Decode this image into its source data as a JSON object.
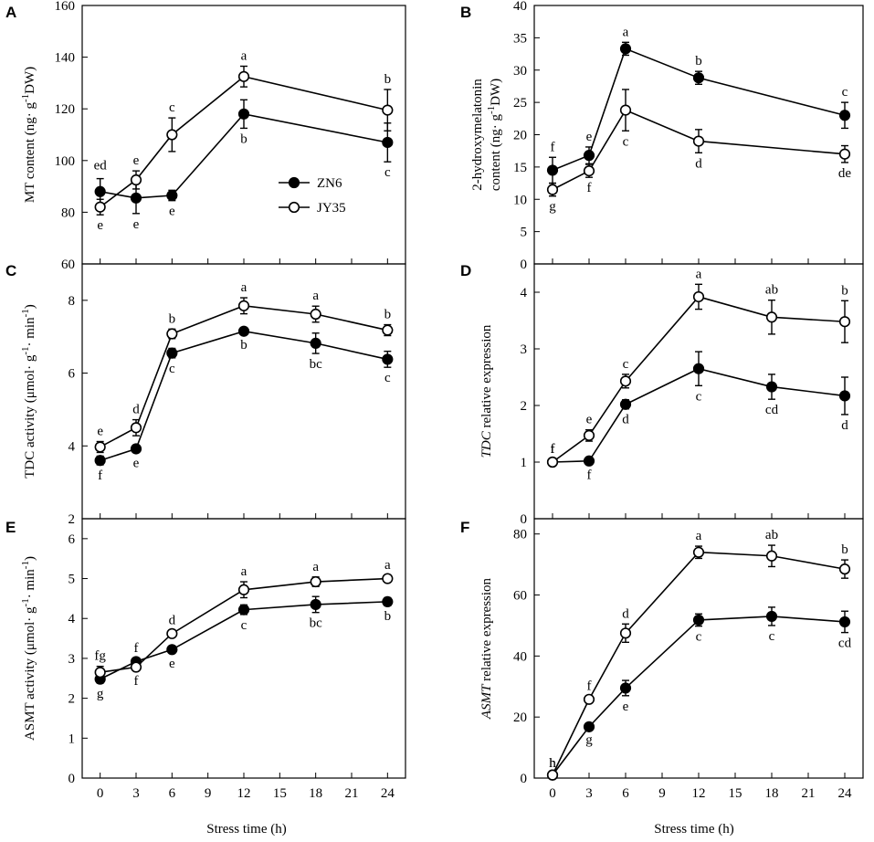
{
  "figure": {
    "x_axis_title": "Stress time (h)",
    "series_names": [
      "ZN6",
      "JY35"
    ],
    "colors": {
      "ZN6": "#000000",
      "JY35": "#ffffff",
      "line": "#000000"
    }
  },
  "chart_data": [
    {
      "id": "A",
      "type": "line",
      "panel_label": "A",
      "ylabel": [
        "MT content (ng· g",
        "-1",
        "DW)"
      ],
      "ylim": [
        60,
        160
      ],
      "yticks": [
        60,
        80,
        100,
        120,
        140,
        160
      ],
      "xlim": [
        -1.5,
        25.5
      ],
      "xticks": [
        0,
        3,
        6,
        9,
        12,
        15,
        18,
        21,
        24
      ],
      "show_x_tick_labels": false,
      "x": [
        0,
        3,
        6,
        12,
        24
      ],
      "series": [
        {
          "name": "ZN6",
          "values": [
            88,
            85.5,
            86.5,
            118,
            107
          ],
          "errors": [
            5,
            6,
            2,
            5.5,
            7.5
          ],
          "letters": [
            "",
            "e",
            "e",
            "b",
            "c"
          ]
        },
        {
          "name": "JY35",
          "values": [
            82,
            92.5,
            110,
            132.5,
            119.5
          ],
          "errors": [
            3,
            3.5,
            6.5,
            4,
            8
          ],
          "letters": [
            "e",
            "e",
            "c",
            "a",
            "b"
          ]
        }
      ],
      "extra_labels": [
        {
          "text": "ed",
          "x": 0,
          "y": 96.5
        }
      ],
      "legend": {
        "entries": [
          "ZN6",
          "JY35"
        ],
        "location": "center"
      }
    },
    {
      "id": "B",
      "type": "line",
      "panel_label": "B",
      "ylabel": [
        "2-hydroxymelatonin",
        "content (ng· g",
        "-1",
        "DW)"
      ],
      "ylim": [
        0,
        40
      ],
      "yticks": [
        0,
        5,
        10,
        15,
        20,
        25,
        30,
        35,
        40
      ],
      "xlim": [
        -1.5,
        25.5
      ],
      "xticks": [
        0,
        3,
        6,
        9,
        12,
        15,
        18,
        21,
        24
      ],
      "show_x_tick_labels": false,
      "x": [
        0,
        3,
        6,
        12,
        24
      ],
      "series": [
        {
          "name": "ZN6",
          "values": [
            14.5,
            16.8,
            33.3,
            28.8,
            23
          ],
          "errors": [
            2,
            1.3,
            1,
            1,
            2
          ],
          "letters": [
            "f",
            "e",
            "a",
            "b",
            "c"
          ]
        },
        {
          "name": "JY35",
          "values": [
            11.5,
            14.4,
            23.8,
            19,
            17
          ],
          "errors": [
            1,
            1,
            3.2,
            1.8,
            1.3
          ],
          "letters": [
            "g",
            "f",
            "c",
            "d",
            "de"
          ]
        }
      ]
    },
    {
      "id": "C",
      "type": "line",
      "panel_label": "C",
      "ylabel": [
        "TDC activity (μmol· g",
        "-1",
        "· min",
        "-1",
        ")"
      ],
      "ylim": [
        2,
        9
      ],
      "yticks": [
        2,
        4,
        6,
        8
      ],
      "xlim": [
        -1.5,
        25.5
      ],
      "xticks": [
        0,
        3,
        6,
        9,
        12,
        15,
        18,
        21,
        24
      ],
      "show_x_tick_labels": false,
      "x": [
        0,
        3,
        6,
        12,
        18,
        24
      ],
      "series": [
        {
          "name": "ZN6",
          "values": [
            3.6,
            3.92,
            6.55,
            7.15,
            6.82,
            6.38
          ],
          "errors": [
            0.12,
            0.1,
            0.13,
            0.08,
            0.28,
            0.22
          ],
          "letters": [
            "f",
            "e",
            "c",
            "b",
            "bc",
            "c"
          ]
        },
        {
          "name": "JY35",
          "values": [
            3.97,
            4.5,
            7.08,
            7.85,
            7.62,
            7.18
          ],
          "errors": [
            0.15,
            0.22,
            0.13,
            0.22,
            0.22,
            0.15
          ],
          "letters": [
            "e",
            "d",
            "b",
            "a",
            "a",
            "b"
          ]
        }
      ]
    },
    {
      "id": "D",
      "type": "line",
      "panel_label": "D",
      "ylabel": [
        "TDC",
        " relative expression"
      ],
      "ylim": [
        0,
        4.5
      ],
      "yticks": [
        0,
        1,
        2,
        3,
        4
      ],
      "xlim": [
        -1.5,
        25.5
      ],
      "xticks": [
        0,
        3,
        6,
        9,
        12,
        15,
        18,
        21,
        24
      ],
      "show_x_tick_labels": false,
      "x": [
        0,
        3,
        6,
        12,
        18,
        24
      ],
      "series": [
        {
          "name": "ZN6",
          "values": [
            1,
            1.02,
            2.02,
            2.65,
            2.33,
            2.17
          ],
          "errors": [
            0.05,
            0.06,
            0.08,
            0.3,
            0.22,
            0.33
          ],
          "letters": [
            "f",
            "f",
            "d",
            "c",
            "cd",
            "d"
          ]
        },
        {
          "name": "JY35",
          "values": [
            1,
            1.47,
            2.43,
            3.92,
            3.56,
            3.48
          ],
          "errors": [
            0.05,
            0.1,
            0.12,
            0.22,
            0.3,
            0.37
          ],
          "letters": [
            "f",
            "e",
            "c",
            "a",
            "ab",
            "b"
          ]
        }
      ]
    },
    {
      "id": "E",
      "type": "line",
      "panel_label": "E",
      "ylabel": [
        "ASMT activity (μmol· g",
        "-1",
        "· min",
        "-1",
        ")"
      ],
      "ylim": [
        0,
        6.5
      ],
      "yticks": [
        0,
        1,
        2,
        3,
        4,
        5,
        6
      ],
      "xlim": [
        -1.5,
        25.5
      ],
      "xticks": [
        0,
        3,
        6,
        9,
        12,
        15,
        18,
        21,
        24
      ],
      "show_x_tick_labels": true,
      "x": [
        0,
        3,
        6,
        12,
        18,
        24
      ],
      "series": [
        {
          "name": "ZN6",
          "values": [
            2.48,
            2.92,
            3.22,
            4.22,
            4.35,
            4.42
          ],
          "errors": [
            0.1,
            0.08,
            0.08,
            0.12,
            0.2,
            0.1
          ],
          "letters": [
            "g",
            "f",
            "e",
            "c",
            "bc",
            "b"
          ]
        },
        {
          "name": "JY35",
          "values": [
            2.65,
            2.78,
            3.62,
            4.72,
            4.92,
            5
          ],
          "errors": [
            0.15,
            0.08,
            0.08,
            0.2,
            0.12,
            0.08
          ],
          "letters": [
            "fg",
            "f",
            "d",
            "a",
            "a",
            "a"
          ]
        }
      ]
    },
    {
      "id": "F",
      "type": "line",
      "panel_label": "F",
      "ylabel": [
        "ASMT",
        " relative expression"
      ],
      "ylim": [
        0,
        85
      ],
      "yticks": [
        0,
        20,
        40,
        60,
        80
      ],
      "xlim": [
        -1.5,
        25.5
      ],
      "xticks": [
        0,
        3,
        6,
        9,
        12,
        15,
        18,
        21,
        24
      ],
      "show_x_tick_labels": true,
      "x": [
        0,
        3,
        6,
        12,
        18,
        24
      ],
      "series": [
        {
          "name": "ZN6",
          "values": [
            1,
            16.8,
            29.5,
            51.8,
            53,
            51.2
          ],
          "errors": [
            0.5,
            0.8,
            2.5,
            2,
            3,
            3.5
          ],
          "letters": [
            "h",
            "g",
            "e",
            "c",
            "c",
            "cd"
          ]
        },
        {
          "name": "JY35",
          "values": [
            1,
            25.8,
            47.5,
            74,
            72.8,
            68.5
          ],
          "errors": [
            0.5,
            1,
            3,
            2,
            3.5,
            3
          ],
          "letters": [
            "h",
            "f",
            "d",
            "a",
            "ab",
            "b"
          ]
        }
      ]
    }
  ]
}
